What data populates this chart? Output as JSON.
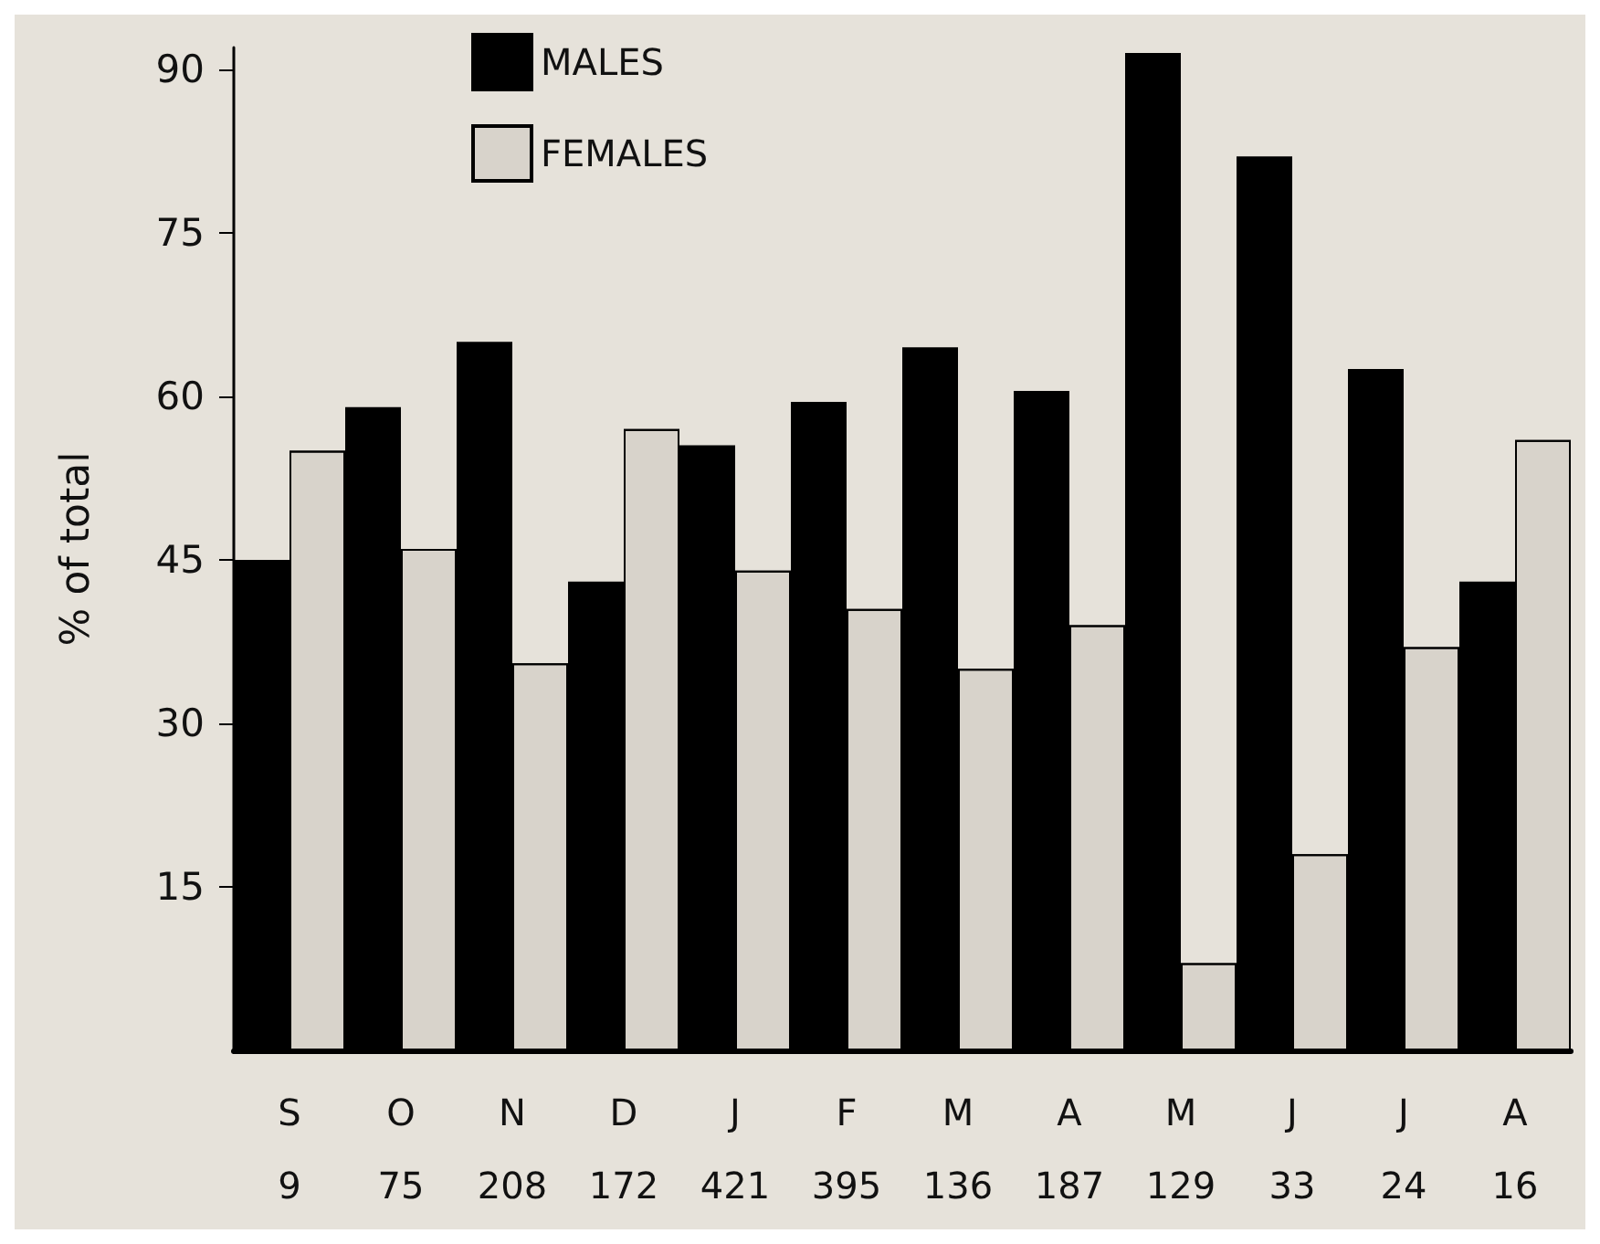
{
  "chart_data": {
    "type": "bar",
    "ylabel": "% of total",
    "categories": [
      "S\n9",
      "O\n75",
      "N\n208",
      "D\n172",
      "J\n421",
      "F\n395",
      "M\n136",
      "A\n187",
      "M\n129",
      "J\n33",
      "J\n24",
      "A\n16"
    ],
    "series": [
      {
        "name": "MALES",
        "color": "#000000",
        "values": [
          45,
          59,
          65,
          43,
          55.5,
          59.5,
          64.5,
          60.5,
          91.5,
          82,
          62.5,
          43
        ]
      },
      {
        "name": "FEMALES",
        "color": "#d8d3cb",
        "values": [
          55,
          46,
          35.5,
          57,
          44,
          40.5,
          35,
          39,
          8,
          18,
          37,
          56
        ]
      }
    ],
    "ylim": [
      0,
      92
    ],
    "yticks": [
      15,
      30,
      45,
      60,
      75,
      90
    ],
    "grid": false,
    "legend": "top left"
  }
}
